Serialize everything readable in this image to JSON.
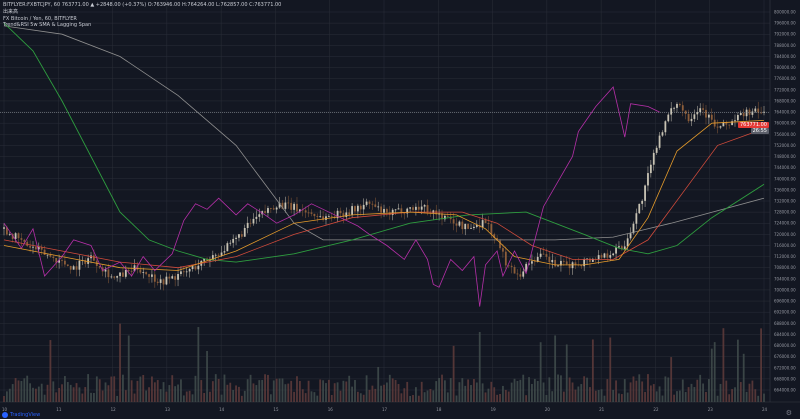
{
  "header": {
    "line1": "BITFLYER:FXBTCJPY, 60  763771.00 ▲ +2848.00 (+0.37%)  O:763946.00  H:764264.00  L:762857.00  C:763771.00",
    "line2": "出来高",
    "line3": "FX Bitcoin / Yen, 60, BITFLYER",
    "line4": "Trend&RSI 5w SMA & Lagging Span"
  },
  "price_tags": {
    "last": "763771.00",
    "countdown": "26:55"
  },
  "yaxis": {
    "labels": [
      "800000.00",
      "796000.00",
      "792000.00",
      "788000.00",
      "784000.00",
      "780000.00",
      "776000.00",
      "772000.00",
      "768000.00",
      "764000.00",
      "760000.00",
      "756000.00",
      "752000.00",
      "748000.00",
      "744000.00",
      "740000.00",
      "736000.00",
      "732000.00",
      "728000.00",
      "724000.00",
      "720000.00",
      "716000.00",
      "712000.00",
      "708000.00",
      "704000.00",
      "700000.00",
      "696000.00",
      "692000.00",
      "688000.00",
      "684000.00",
      "680000.00",
      "676000.00",
      "672000.00",
      "668000.00",
      "664000.00"
    ]
  },
  "xaxis": {
    "labels": [
      "10",
      "11",
      "12",
      "13",
      "14",
      "15",
      "16",
      "17",
      "18",
      "19",
      "20",
      "21",
      "22",
      "23",
      "24"
    ]
  },
  "logo": "TradingView",
  "colors": {
    "bg": "#131722",
    "grid": "#2a2e39",
    "up": "#26a69a",
    "down": "#ef5350",
    "candle_up": "#c8c3b4",
    "candle_down": "#8d5e3a",
    "sma_fast": "#e59b2b",
    "sma_mid": "#d14b3b",
    "sma_green": "#2e9d3f",
    "sma_gray": "#8f8f8f",
    "lagging": "#b52fa8",
    "last_price": "#e53935"
  },
  "chart_data": {
    "type": "candlestick",
    "x": [
      "10",
      "11",
      "12",
      "13",
      "14",
      "15",
      "16",
      "17",
      "18",
      "19",
      "20",
      "21",
      "22",
      "23",
      "24"
    ],
    "price_path": [
      [
        0,
        722000
      ],
      [
        8,
        716000
      ],
      [
        16,
        712000
      ],
      [
        24,
        708000
      ],
      [
        30,
        712000
      ],
      [
        38,
        704000
      ],
      [
        46,
        708000
      ],
      [
        54,
        703000
      ],
      [
        62,
        706000
      ],
      [
        70,
        711000
      ],
      [
        78,
        716000
      ],
      [
        86,
        725000
      ],
      [
        94,
        731000
      ],
      [
        102,
        729000
      ],
      [
        110,
        726000
      ],
      [
        118,
        728000
      ],
      [
        126,
        731000
      ],
      [
        132,
        727000
      ],
      [
        138,
        729000
      ],
      [
        144,
        730000
      ],
      [
        152,
        726000
      ],
      [
        160,
        722000
      ],
      [
        166,
        725000
      ],
      [
        170,
        717000
      ],
      [
        174,
        708000
      ],
      [
        178,
        706000
      ],
      [
        182,
        711000
      ],
      [
        186,
        712000
      ],
      [
        190,
        709000
      ],
      [
        196,
        709000
      ],
      [
        202,
        711000
      ],
      [
        208,
        713000
      ],
      [
        214,
        716000
      ],
      [
        220,
        733000
      ],
      [
        226,
        756000
      ],
      [
        232,
        768000
      ],
      [
        236,
        762000
      ],
      [
        240,
        766000
      ],
      [
        246,
        758000
      ],
      [
        250,
        760000
      ],
      [
        256,
        764000
      ],
      [
        262,
        763771
      ]
    ],
    "sma_fast_path": [
      [
        0,
        716000
      ],
      [
        20,
        712000
      ],
      [
        40,
        708000
      ],
      [
        60,
        707000
      ],
      [
        80,
        714000
      ],
      [
        100,
        724000
      ],
      [
        120,
        727000
      ],
      [
        140,
        728000
      ],
      [
        156,
        727000
      ],
      [
        166,
        722000
      ],
      [
        176,
        712000
      ],
      [
        190,
        709000
      ],
      [
        200,
        709000
      ],
      [
        212,
        711000
      ],
      [
        222,
        726000
      ],
      [
        232,
        750000
      ],
      [
        244,
        760000
      ],
      [
        262,
        761000
      ]
    ],
    "sma_mid_path": [
      [
        0,
        718000
      ],
      [
        20,
        714000
      ],
      [
        40,
        710000
      ],
      [
        60,
        708000
      ],
      [
        80,
        712000
      ],
      [
        100,
        720000
      ],
      [
        120,
        726000
      ],
      [
        140,
        728000
      ],
      [
        158,
        728000
      ],
      [
        170,
        724000
      ],
      [
        182,
        716000
      ],
      [
        196,
        711000
      ],
      [
        210,
        711000
      ],
      [
        222,
        718000
      ],
      [
        234,
        735000
      ],
      [
        246,
        752000
      ],
      [
        262,
        758000
      ]
    ],
    "sma_green_path": [
      [
        0,
        796000
      ],
      [
        10,
        786000
      ],
      [
        20,
        768000
      ],
      [
        30,
        748000
      ],
      [
        40,
        728000
      ],
      [
        50,
        718000
      ],
      [
        60,
        714000
      ],
      [
        70,
        711000
      ],
      [
        80,
        710000
      ],
      [
        100,
        713000
      ],
      [
        120,
        718000
      ],
      [
        140,
        724000
      ],
      [
        160,
        727000
      ],
      [
        180,
        728000
      ],
      [
        200,
        720000
      ],
      [
        212,
        715000
      ],
      [
        222,
        713000
      ],
      [
        232,
        716000
      ],
      [
        244,
        726000
      ],
      [
        262,
        738000
      ]
    ],
    "sma_gray_path": [
      [
        0,
        795000
      ],
      [
        20,
        792000
      ],
      [
        40,
        784000
      ],
      [
        60,
        770000
      ],
      [
        80,
        752000
      ],
      [
        90,
        738000
      ],
      [
        100,
        724000
      ],
      [
        110,
        718000
      ],
      [
        130,
        718000
      ],
      [
        160,
        718000
      ],
      [
        190,
        718000
      ],
      [
        210,
        719000
      ],
      [
        230,
        724000
      ],
      [
        262,
        733000
      ]
    ],
    "lagging_path": [
      [
        0,
        724000
      ],
      [
        6,
        715000
      ],
      [
        10,
        722000
      ],
      [
        14,
        705000
      ],
      [
        20,
        712000
      ],
      [
        24,
        718000
      ],
      [
        30,
        716000
      ],
      [
        34,
        707000
      ],
      [
        40,
        710000
      ],
      [
        44,
        705000
      ],
      [
        48,
        712000
      ],
      [
        52,
        707000
      ],
      [
        58,
        713000
      ],
      [
        62,
        725000
      ],
      [
        66,
        731000
      ],
      [
        70,
        729000
      ],
      [
        74,
        733000
      ],
      [
        80,
        727000
      ],
      [
        84,
        731000
      ],
      [
        90,
        727000
      ],
      [
        94,
        724000
      ],
      [
        100,
        727000
      ],
      [
        106,
        731000
      ],
      [
        110,
        729000
      ],
      [
        116,
        726000
      ],
      [
        122,
        723000
      ],
      [
        126,
        720000
      ],
      [
        132,
        716000
      ],
      [
        138,
        711000
      ],
      [
        142,
        718000
      ],
      [
        146,
        711000
      ],
      [
        148,
        702000
      ],
      [
        150,
        701000
      ],
      [
        154,
        711000
      ],
      [
        158,
        707000
      ],
      [
        162,
        712000
      ],
      [
        164,
        694000
      ],
      [
        166,
        709000
      ],
      [
        170,
        714000
      ],
      [
        172,
        705000
      ],
      [
        176,
        714000
      ],
      [
        180,
        706000
      ],
      [
        186,
        730000
      ],
      [
        196,
        748000
      ],
      [
        198,
        757000
      ],
      [
        204,
        766000
      ],
      [
        210,
        773000
      ],
      [
        214,
        755000
      ],
      [
        216,
        767000
      ],
      [
        222,
        766000
      ],
      [
        226,
        764000
      ]
    ],
    "last_price": 763771,
    "yrange": [
      664000,
      800000
    ],
    "volume_note": "histogram"
  }
}
